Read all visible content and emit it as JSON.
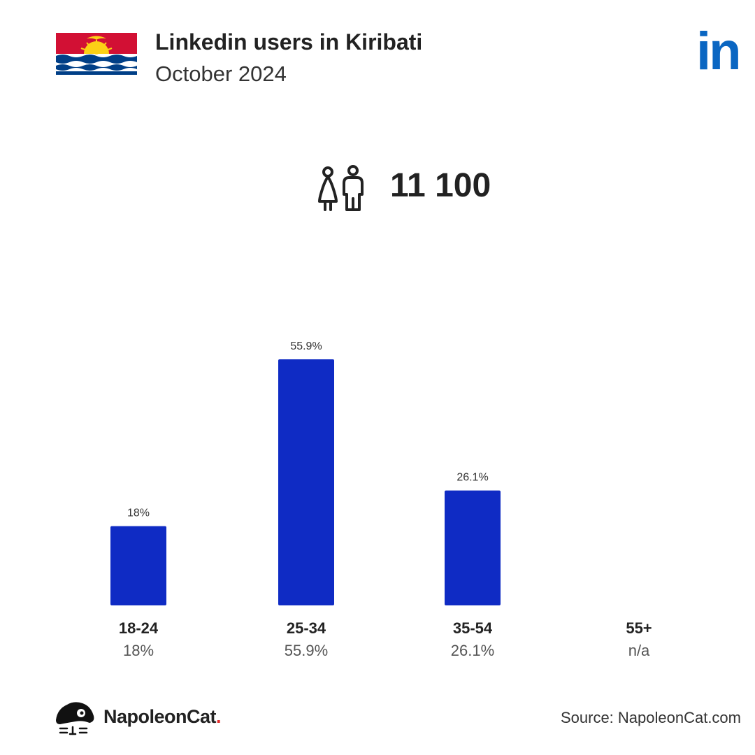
{
  "header": {
    "title": "Linkedin users in Kiribati",
    "subtitle": "October 2024",
    "flag_icon": "kiribati-flag",
    "logo_text": "in",
    "logo_color": "#0a66c2"
  },
  "total": {
    "icon": "users-icon",
    "value": "11 100"
  },
  "chart_data": {
    "type": "bar",
    "categories": [
      "18-24",
      "25-34",
      "35-54",
      "55+"
    ],
    "values": [
      18,
      55.9,
      26.1,
      null
    ],
    "value_labels": [
      "18%",
      "55.9%",
      "26.1%",
      "n/a"
    ],
    "bar_labels": [
      "18%",
      "55.9%",
      "26.1%",
      ""
    ],
    "ylim": [
      0,
      55.9
    ],
    "grid": false,
    "bar_color": "#0f2bc4"
  },
  "footer": {
    "brand_name": "NapoleonCat",
    "brand_dot": ".",
    "brand_icon": "napoleoncat-icon",
    "source": "Source: NapoleonCat.com"
  }
}
